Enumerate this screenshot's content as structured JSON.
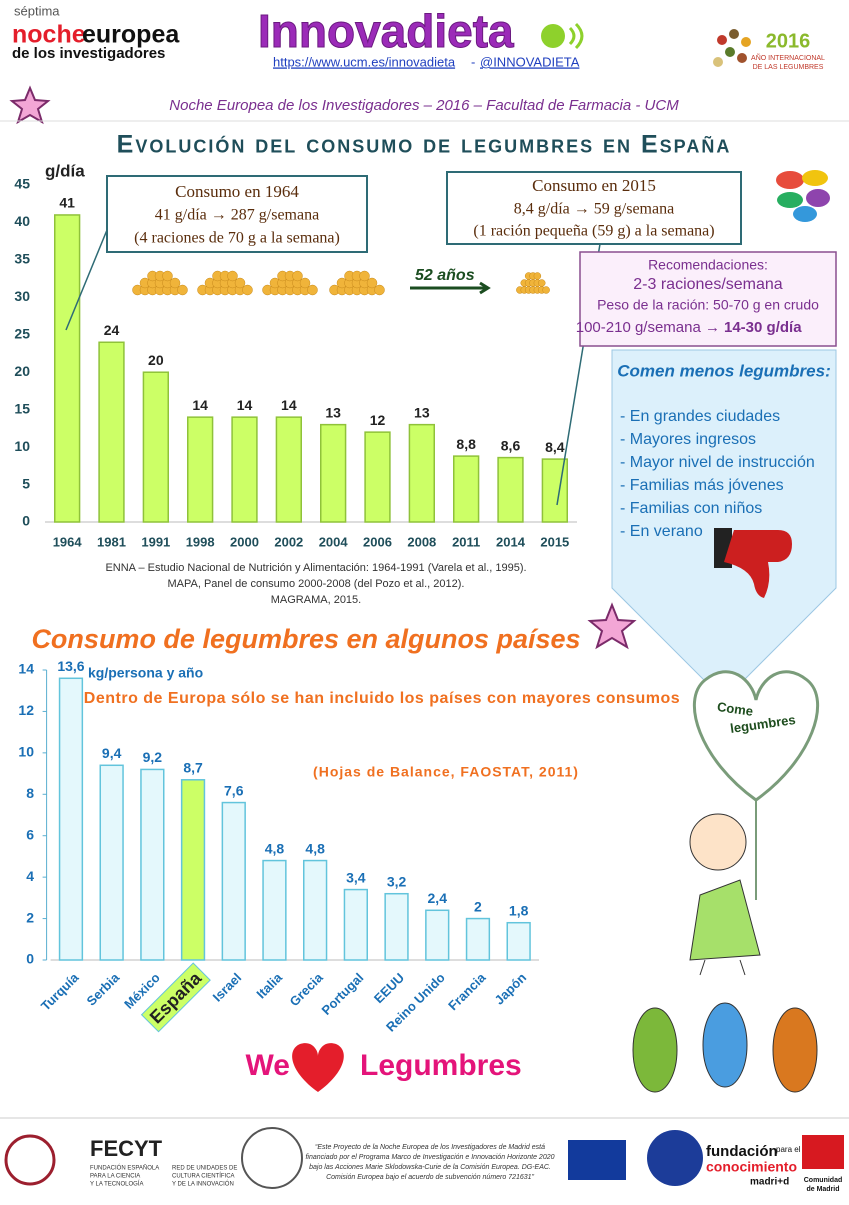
{
  "header": {
    "brand_small": "séptima",
    "brand_a": "noche",
    "brand_b": "europea",
    "brand_c": "de los investigadores",
    "title": "Innovadieta",
    "url": "https://www.ucm.es/innovadieta",
    "separator": "-",
    "handle": "@INNOVADIETA",
    "year_logo": "2016",
    "year_logo_text": [
      "AÑO INTERNACIONAL",
      "DE LAS LEGUMBRES"
    ],
    "subtitle": "Noche Europea de los Investigadores – 2016 – Facultad de Farmacia - UCM"
  },
  "chart_data": [
    {
      "type": "bar",
      "title": "Evolución del consumo de legumbres en España",
      "ylabel": "g/día",
      "categories": [
        "1964",
        "1981",
        "1991",
        "1998",
        "2000",
        "2002",
        "2004",
        "2006",
        "2008",
        "2011",
        "2014",
        "2015"
      ],
      "values": [
        41,
        24,
        20,
        14,
        14,
        14,
        13,
        12,
        13,
        8.8,
        8.6,
        8.4
      ],
      "value_labels": [
        "41",
        "24",
        "20",
        "14",
        "14",
        "14",
        "13",
        "12",
        "13",
        "8,8",
        "8,6",
        "8,4"
      ],
      "color": "#ccff66",
      "border_color": "#8fc23a",
      "ylim": [
        0,
        45
      ],
      "yticks": [
        0,
        5,
        10,
        15,
        20,
        25,
        30,
        35,
        40,
        45
      ],
      "grid": false,
      "box_1964": {
        "title": "Consumo en 1964",
        "lines": [
          "41 g/día → 287 g/semana",
          "(4 raciones de 70 g a la semana)"
        ]
      },
      "box_2015": {
        "title": "Consumo en 2015",
        "lines": [
          "8,4 g/día → 59 g/semana",
          "(1 ración pequeña (59 g) a la semana)"
        ]
      },
      "gap_label": "52 años",
      "recommendations": {
        "title": "Recomendaciones:",
        "lines": [
          "2-3 raciones/semana",
          "Peso de la ración: 50-70 g en crudo",
          "100-210 g/semana →",
          "14-30 g/día"
        ]
      },
      "sources": [
        "ENNA – Estudio Nacional de Nutrición y Alimentación: 1964-1991 (Varela et al., 1995).",
        "MAPA, Panel de consumo 2000-2008 (del Pozo et al., 2012).",
        "MAGRAMA, 2015."
      ]
    },
    {
      "type": "bar",
      "title": "Consumo de legumbres en algunos países",
      "ylabel": "kg/persona y año",
      "categories": [
        "Turquía",
        "Serbia",
        "México",
        "España",
        "Israel",
        "Italia",
        "Grecia",
        "Portugal",
        "EEUU",
        "Reino Unido",
        "Francia",
        "Japón"
      ],
      "values": [
        13.6,
        9.4,
        9.2,
        8.7,
        7.6,
        4.8,
        4.8,
        3.4,
        3.2,
        2.4,
        2,
        1.8
      ],
      "value_labels": [
        "13,6",
        "9,4",
        "9,2",
        "8,7",
        "7,6",
        "4,8",
        "4,8",
        "3,4",
        "3,2",
        "2,4",
        "2",
        "1,8"
      ],
      "color": "#e4f8fc",
      "border_color": "#62c4dc",
      "colors": [
        "#e4f8fc",
        "#e4f8fc",
        "#e4f8fc",
        "#ccff66",
        "#e4f8fc",
        "#e4f8fc",
        "#e4f8fc",
        "#e4f8fc",
        "#e4f8fc",
        "#e4f8fc",
        "#e4f8fc",
        "#e4f8fc"
      ],
      "ylim": [
        0,
        14
      ],
      "yticks": [
        0,
        2,
        4,
        6,
        8,
        10,
        12,
        14
      ],
      "grid": false,
      "note": "Dentro de Europa sólo se han incluido los países con mayores consumos",
      "source": "(Hojas de Balance, FAOSTAT, 2011)"
    }
  ],
  "panel": {
    "title": "Comen menos legumbres:",
    "items": [
      "- En grandes ciudades",
      "- Mayores ingresos",
      "- Mayor nivel de instrucción",
      "- Familias más jóvenes",
      "- Familias con niños",
      "- En verano"
    ]
  },
  "decor": {
    "heart": [
      "Come",
      "legumbres"
    ],
    "slogan": [
      "We",
      "Legumbres"
    ]
  },
  "footer": {
    "fecyt": "FECYT",
    "fecyt_text": [
      "FUNDACIÓN ESPAÑOLA",
      "PARA LA CIENCIA",
      "Y LA TECNOLOGÍA"
    ],
    "red_text": [
      "RED DE UNIDADES DE",
      "CULTURA CIENTÍFICA",
      "Y DE LA INNOVACIÓN"
    ],
    "quote": [
      "“Este Proyecto de la Noche Europea de los Investigadores de Madrid está",
      "financiado por el Programa Marco de Investigación e Innovación Horizonte 2020",
      "bajo las Acciones Marie Sklodowska-Curie de la Comisión Europea. DG-EAC.",
      "Comisión Europea bajo el acuerdo de subvención número 721631”"
    ],
    "madrid": [
      "fundación",
      "para el",
      "conocimiento",
      "madri+d"
    ],
    "comunidad": [
      "Comunidad",
      "de Madrid"
    ]
  }
}
